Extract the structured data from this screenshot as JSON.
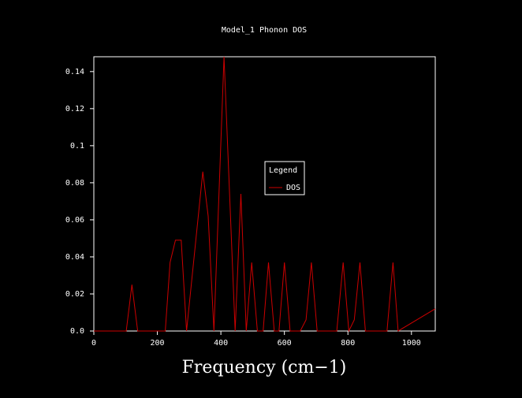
{
  "chart_data": {
    "type": "line",
    "title": "Model_1 Phonon DOS",
    "xlabel": "Frequency (cm−1)",
    "ylabel": "",
    "xlim": [
      0,
      1075
    ],
    "ylim": [
      0,
      0.148
    ],
    "x_ticks": [
      0,
      200,
      400,
      600,
      800,
      1000
    ],
    "x_tick_labels": [
      "0",
      "200",
      "400",
      "600",
      "800",
      "1000"
    ],
    "y_ticks": [
      0.0,
      0.02,
      0.04,
      0.06,
      0.08,
      0.1,
      0.12,
      0.14
    ],
    "y_tick_labels": [
      "0.0",
      "0.02",
      "0.04",
      "0.06",
      "0.08",
      "0.1",
      "0.12",
      "0.14"
    ],
    "grid": false,
    "legend": {
      "title": "Legend",
      "placement": "center",
      "entries": [
        "DOS"
      ]
    },
    "series": [
      {
        "name": "DOS",
        "color": "#cc0000",
        "x": [
          0,
          102,
          120,
          138,
          225,
          240,
          257,
          275,
          292,
          343,
          360,
          378,
          410,
          445,
          463,
          480,
          497,
          515,
          533,
          550,
          568,
          583,
          600,
          618,
          650,
          668,
          685,
          703,
          765,
          785,
          803,
          820,
          838,
          855,
          923,
          942,
          958,
          1075
        ],
        "y": [
          0,
          0,
          0.025,
          0,
          0,
          0.037,
          0.049,
          0.049,
          0,
          0.086,
          0.062,
          0,
          0.148,
          0,
          0.074,
          0,
          0.037,
          0,
          0,
          0.037,
          0,
          0,
          0.037,
          0,
          0,
          0.006,
          0.037,
          0,
          0,
          0.037,
          0,
          0.006,
          0.037,
          0,
          0,
          0.037,
          0,
          0.012
        ]
      }
    ]
  },
  "colors": {
    "background": "#000000",
    "axes": "#ffffff",
    "series": "#cc0000"
  }
}
